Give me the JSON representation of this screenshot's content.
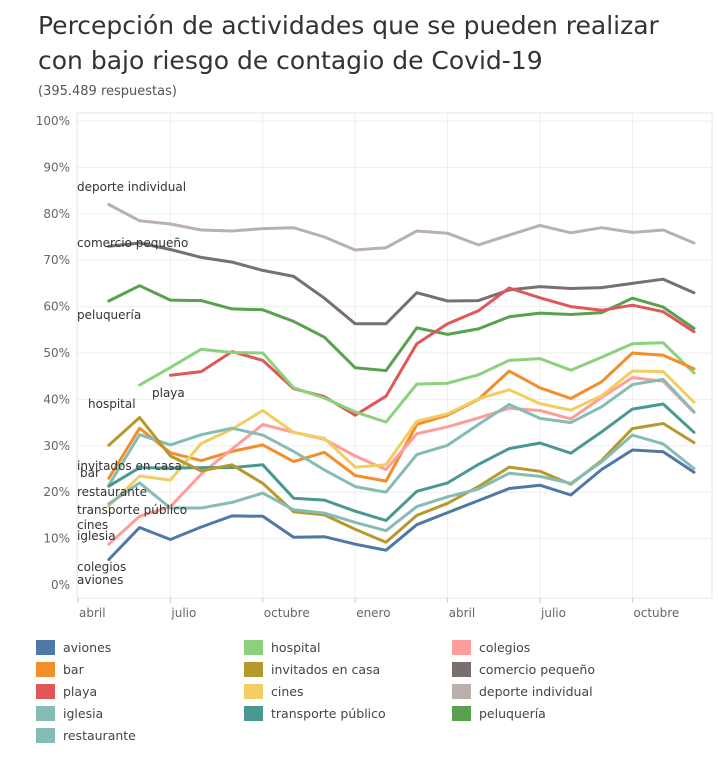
{
  "chart_data": {
    "type": "line",
    "title": "Percepción de actividades que se pueden realizar con bajo riesgo de contagio de Covid-19",
    "subtitle": "(395.489 respuestas)",
    "xlabel": "",
    "ylabel": "",
    "ylim": [
      0,
      100
    ],
    "y_ticks": [
      "0%",
      "10%",
      "20%",
      "30%",
      "40%",
      "50%",
      "60%",
      "70%",
      "80%",
      "90%",
      "100%"
    ],
    "x_ticks": [
      "abril",
      "julio",
      "octubre",
      "enero",
      "abril",
      "julio",
      "octubre"
    ],
    "x_tick_positions": [
      0,
      3,
      6,
      9,
      12,
      15,
      18
    ],
    "x": [
      1,
      2,
      3,
      4,
      5,
      6,
      7,
      8,
      9,
      10,
      11,
      12,
      13,
      14,
      15,
      16,
      17,
      18,
      19,
      20
    ],
    "grid": true,
    "legend_position": "bottom",
    "series": [
      {
        "name": "deporte individual",
        "color": "#bab0ac",
        "values": [
          82,
          78.5,
          77.8,
          76.5,
          76.3,
          76.8,
          77,
          75,
          72.2,
          72.7,
          76.3,
          75.8,
          73.3,
          75.4,
          77.5,
          75.9,
          77,
          76,
          76.5,
          73.7
        ]
      },
      {
        "name": "comercio pequeño",
        "color": "#79706e",
        "values": [
          73,
          73.7,
          72.3,
          70.6,
          69.6,
          67.8,
          66.5,
          61.8,
          56.3,
          56.3,
          63,
          61.2,
          61.3,
          63.6,
          64.3,
          63.9,
          64.1,
          65,
          65.9,
          63
        ]
      },
      {
        "name": "peluquería",
        "color": "#59a14f",
        "values": [
          61.2,
          64.5,
          61.4,
          61.3,
          59.5,
          59.3,
          56.8,
          53.4,
          46.8,
          46.2,
          55.4,
          54,
          55.2,
          57.8,
          58.6,
          58.3,
          58.7,
          61.8,
          59.9,
          55.3
        ]
      },
      {
        "name": "playa",
        "color": "#e15759",
        "values": [
          null,
          null,
          45.2,
          46,
          50.3,
          48.4,
          42.3,
          40.6,
          36.6,
          40.7,
          52,
          56.3,
          59.1,
          64,
          61.9,
          60,
          59.2,
          60.3,
          58.9,
          54.6
        ]
      },
      {
        "name": "hospital",
        "color": "#8cd17d",
        "values": [
          null,
          43.1,
          46.9,
          50.8,
          50.1,
          50,
          42.5,
          40.3,
          37.3,
          35.1,
          43.3,
          43.5,
          45.3,
          48.4,
          48.8,
          46.3,
          49.1,
          52,
          52.2,
          45.7
        ]
      },
      {
        "name": "bar",
        "color": "#f28e2b",
        "values": [
          23,
          33.8,
          28.5,
          26.8,
          28.8,
          30.2,
          26.6,
          28.6,
          23.6,
          22.4,
          34.6,
          36.6,
          40,
          46.1,
          42.5,
          40.2,
          43.8,
          50,
          49.5,
          46.6
        ]
      },
      {
        "name": "colegios",
        "color": "#ff9d9a",
        "values": [
          8.8,
          14.8,
          16.9,
          23.9,
          29.3,
          34.6,
          32.9,
          31.4,
          27.8,
          24.9,
          32.6,
          34.1,
          36,
          38.1,
          37.6,
          35.8,
          40.4,
          44.7,
          43.9,
          37.2
        ]
      },
      {
        "name": "cines",
        "color": "#f1ce63",
        "values": [
          17,
          23.5,
          22.6,
          30.5,
          33.6,
          37.6,
          32.9,
          31.6,
          25.4,
          25.9,
          35.3,
          36.9,
          40.1,
          42.1,
          39.1,
          37.7,
          40.8,
          46.1,
          46,
          39.4
        ]
      },
      {
        "name": "restaurante",
        "color": "#86bcb6",
        "values": [
          21.5,
          32.4,
          30.2,
          32.4,
          33.8,
          32.3,
          28.8,
          24.8,
          21.2,
          20,
          28.1,
          30.1,
          34.6,
          38.9,
          35.9,
          35,
          38.4,
          43.2,
          44.3,
          37.3
        ]
      },
      {
        "name": "transporte público",
        "color": "#499894",
        "values": [
          21.3,
          25.3,
          25.2,
          25.3,
          25.3,
          25.9,
          18.7,
          18.3,
          15.9,
          13.9,
          20.2,
          22,
          26,
          29.4,
          30.6,
          28.4,
          33,
          37.9,
          39,
          32.9
        ]
      },
      {
        "name": "invitados en casa",
        "color": "#b6992d",
        "values": [
          30.1,
          36.1,
          27.8,
          24.6,
          25.9,
          21.9,
          15.8,
          15.1,
          12,
          9.2,
          15,
          17.6,
          21.2,
          25.4,
          24.5,
          21.7,
          26.8,
          33.7,
          34.8,
          30.7
        ]
      },
      {
        "name": "iglesia",
        "color": "#86bcb6",
        "values": [
          17.5,
          22,
          16.6,
          16.6,
          17.8,
          19.8,
          16.2,
          15.5,
          13.5,
          11.7,
          16.9,
          19,
          20.7,
          24.1,
          23.4,
          21.9,
          26.5,
          32.3,
          30.4,
          25.1
        ]
      },
      {
        "name": "aviones",
        "color": "#4e79a7",
        "values": [
          5.5,
          12.4,
          9.8,
          12.5,
          14.9,
          14.8,
          10.3,
          10.4,
          8.8,
          7.5,
          13,
          15.6,
          18.2,
          20.8,
          21.5,
          19.4,
          24.9,
          29.1,
          28.7,
          24.3
        ]
      }
    ],
    "line_labels": [
      "deporte individual",
      "comercio pequeño",
      "peluquería",
      "playa",
      "hospital",
      "invitados en casa",
      "bar",
      "restaurante",
      "transporte público",
      "cines",
      "iglesia",
      "colegios",
      "aviones"
    ]
  },
  "legend": [
    {
      "label": "aviones",
      "color": "#4e79a7"
    },
    {
      "label": "hospital",
      "color": "#8cd17d"
    },
    {
      "label": "colegios",
      "color": "#ff9d9a"
    },
    {
      "label": "bar",
      "color": "#f28e2b"
    },
    {
      "label": "invitados en casa",
      "color": "#b6992d"
    },
    {
      "label": "comercio pequeño",
      "color": "#79706e"
    },
    {
      "label": "playa",
      "color": "#e15759"
    },
    {
      "label": "cines",
      "color": "#f1ce63"
    },
    {
      "label": "deporte individual",
      "color": "#bab0ac"
    },
    {
      "label": "iglesia",
      "color": "#86bcb6"
    },
    {
      "label": "transporte público",
      "color": "#499894"
    },
    {
      "label": "peluquería",
      "color": "#59a14f"
    },
    {
      "label": "restaurante",
      "color": "#86bcb6"
    }
  ]
}
